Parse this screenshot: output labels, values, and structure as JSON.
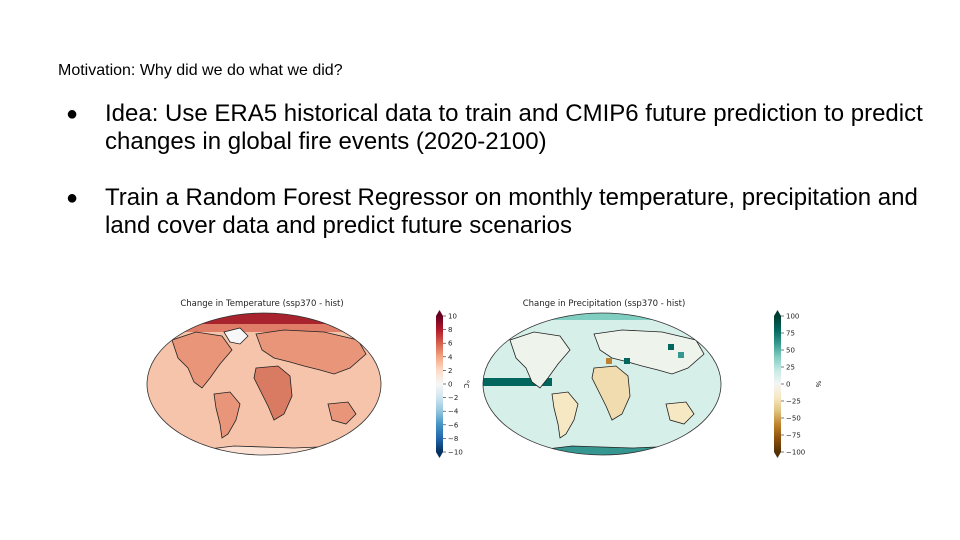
{
  "slide": {
    "subtitle": "Motivation: Why did we do what we did?",
    "bullets": [
      {
        "marker": "●",
        "text": "Idea: Use ERA5 historical data to train and CMIP6 future prediction to predict changes in global fire events (2020-2100)"
      },
      {
        "marker": "●",
        "text": "Train a Random Forest Regressor on monthly temperature, precipitation and land cover data and predict future scenarios"
      }
    ]
  },
  "figures": {
    "temperature": {
      "title": "Change in Temperature (ssp370 - hist)",
      "unit": "°C",
      "colormap": [
        "#053061",
        "#2166ac",
        "#4393c3",
        "#92c5de",
        "#d1e5f0",
        "#f7f7f7",
        "#fddbc7",
        "#f4a582",
        "#d6604d",
        "#b2182b",
        "#67001f"
      ],
      "ocean_color": "#f6c4aa",
      "land_color": "#e8957a"
    },
    "precipitation": {
      "title": "Change in Precipitation (ssp370 - hist)",
      "unit": "%",
      "colormap": [
        "#543005",
        "#8c510a",
        "#bf812d",
        "#dfc27d",
        "#f6e8c3",
        "#f5f5f5",
        "#c7eae5",
        "#80cdc1",
        "#35978f",
        "#01665e",
        "#003c30"
      ],
      "ocean_color": "#d6efe9",
      "land_color": "#eef3ec"
    }
  },
  "chart_data": [
    {
      "type": "heatmap",
      "title": "Change in Temperature (ssp370 - hist)",
      "colorbar_label": "°C",
      "colorbar_range": [
        -10,
        10
      ],
      "colorbar_ticks": [
        "10",
        "8",
        "6",
        "4",
        "2",
        "0",
        "−2",
        "−4",
        "−6",
        "−8",
        "−10"
      ]
    },
    {
      "type": "heatmap",
      "title": "Change in Precipitation (ssp370 - hist)",
      "colorbar_label": "%",
      "colorbar_range": [
        -100,
        100
      ],
      "colorbar_ticks": [
        "100",
        "75",
        "50",
        "25",
        "0",
        "−25",
        "−50",
        "−75",
        "−100"
      ]
    }
  ]
}
